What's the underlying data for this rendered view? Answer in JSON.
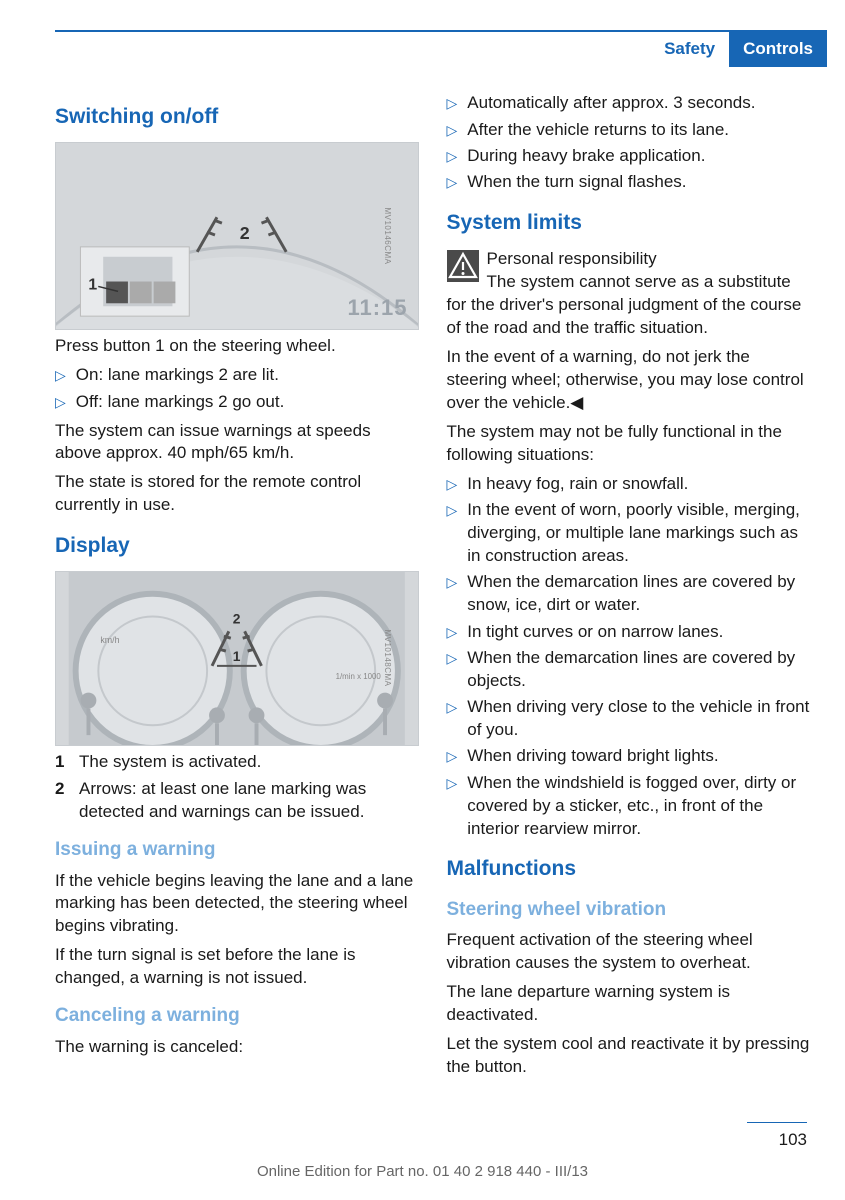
{
  "breadcrumb": {
    "safety": "Safety",
    "controls": "Controls"
  },
  "colors": {
    "accent": "#1766b5",
    "subhead": "#7db0de",
    "rule": "#1766b5",
    "figBg": "#d4d7da",
    "figBorder": "#c8ccd0"
  },
  "left": {
    "h1": "Switching on/off",
    "fig1_code": "MV10146CMA",
    "fig1_clock": "11:15",
    "p1": "Press button 1 on the steering wheel.",
    "onoff": [
      "On: lane markings 2 are lit.",
      "Off: lane markings 2 go out."
    ],
    "p2": "The system can issue warnings at speeds above approx. 40 mph/65 km/h.",
    "p3": "The state is stored for the remote control currently in use.",
    "h2": "Display",
    "fig2_code": "MV10148CMA",
    "display": [
      {
        "n": "1",
        "t": "The system is activated."
      },
      {
        "n": "2",
        "t": "Arrows: at least one lane marking was detected and warnings can be issued."
      }
    ],
    "h3": "Issuing a warning",
    "issue1": "If the vehicle begins leaving the lane and a lane marking has been detected, the steering wheel begins vibrating.",
    "issue2": "If the turn signal is set before the lane is changed, a warning is not issued.",
    "h4": "Canceling a warning",
    "cancel": "The warning is canceled:"
  },
  "right": {
    "cancel_list": [
      "Automatically after approx. 3 seconds.",
      "After the vehicle returns to its lane.",
      "During heavy brake application.",
      "When the turn signal flashes."
    ],
    "h1": "System limits",
    "warn_title": "Personal responsibility",
    "warn_body": "The system cannot serve as a substitute for the driver's personal judgment of the course of the road and the traffic situation.",
    "warn_p2": "In the event of a warning, do not jerk the steering wheel; otherwise, you may lose control over the vehicle.◀",
    "func_intro": "The system may not be fully functional in the following situations:",
    "func_list": [
      "In heavy fog, rain or snowfall.",
      "In the event of worn, poorly visible, merging, diverging, or multiple lane markings such as in construction areas.",
      "When the demarcation lines are covered by snow, ice, dirt or water.",
      "In tight curves or on narrow lanes.",
      "When the demarcation lines are covered by objects.",
      "When driving very close to the vehicle in front of you.",
      "When driving toward bright lights.",
      "When the windshield is fogged over, dirty or covered by a sticker, etc., in front of the interior rearview mirror."
    ],
    "h2": "Malfunctions",
    "h3": "Steering wheel vibration",
    "m1": "Frequent activation of the steering wheel vibration causes the system to overheat.",
    "m2": "The lane departure warning system is deactivated.",
    "m3": "Let the system cool and reactivate it by pressing the button."
  },
  "footer": "Online Edition for Part no. 01 40 2 918 440 - III/13",
  "page": "103"
}
